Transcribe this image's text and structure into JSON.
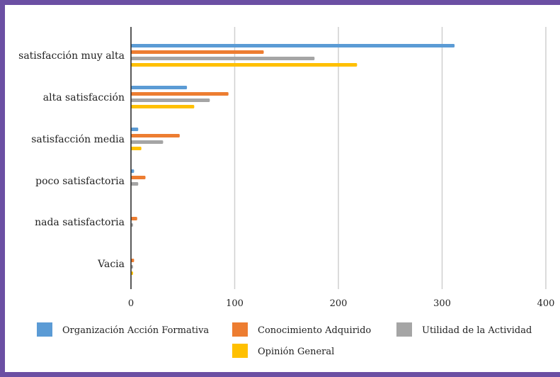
{
  "chart_data": {
    "type": "bar",
    "orientation": "horizontal",
    "title": "",
    "xlabel": "",
    "ylabel": "",
    "categories": [
      "satisfacción muy alta",
      "alta satisfacción",
      "satisfacción media",
      "poco satisfactoria",
      "nada satisfactoria",
      "Vacia"
    ],
    "series": [
      {
        "name": "Organización Acción Formativa",
        "color": "#5b9bd5",
        "values": [
          312,
          54,
          7,
          3,
          0,
          0
        ]
      },
      {
        "name": "Conocimiento Adquirido",
        "color": "#ed7d31",
        "values": [
          128,
          94,
          47,
          14,
          6,
          3
        ]
      },
      {
        "name": "Utilidad de la Actividad",
        "color": "#a5a5a5",
        "values": [
          177,
          76,
          31,
          7,
          2,
          2
        ]
      },
      {
        "name": "Opinión General",
        "color": "#ffc000",
        "values": [
          218,
          61,
          10,
          0,
          0,
          2
        ]
      }
    ],
    "xlim": [
      0,
      400
    ],
    "xticks": [
      0,
      100,
      200,
      300,
      400
    ],
    "grid": true,
    "legend_position": "bottom"
  }
}
